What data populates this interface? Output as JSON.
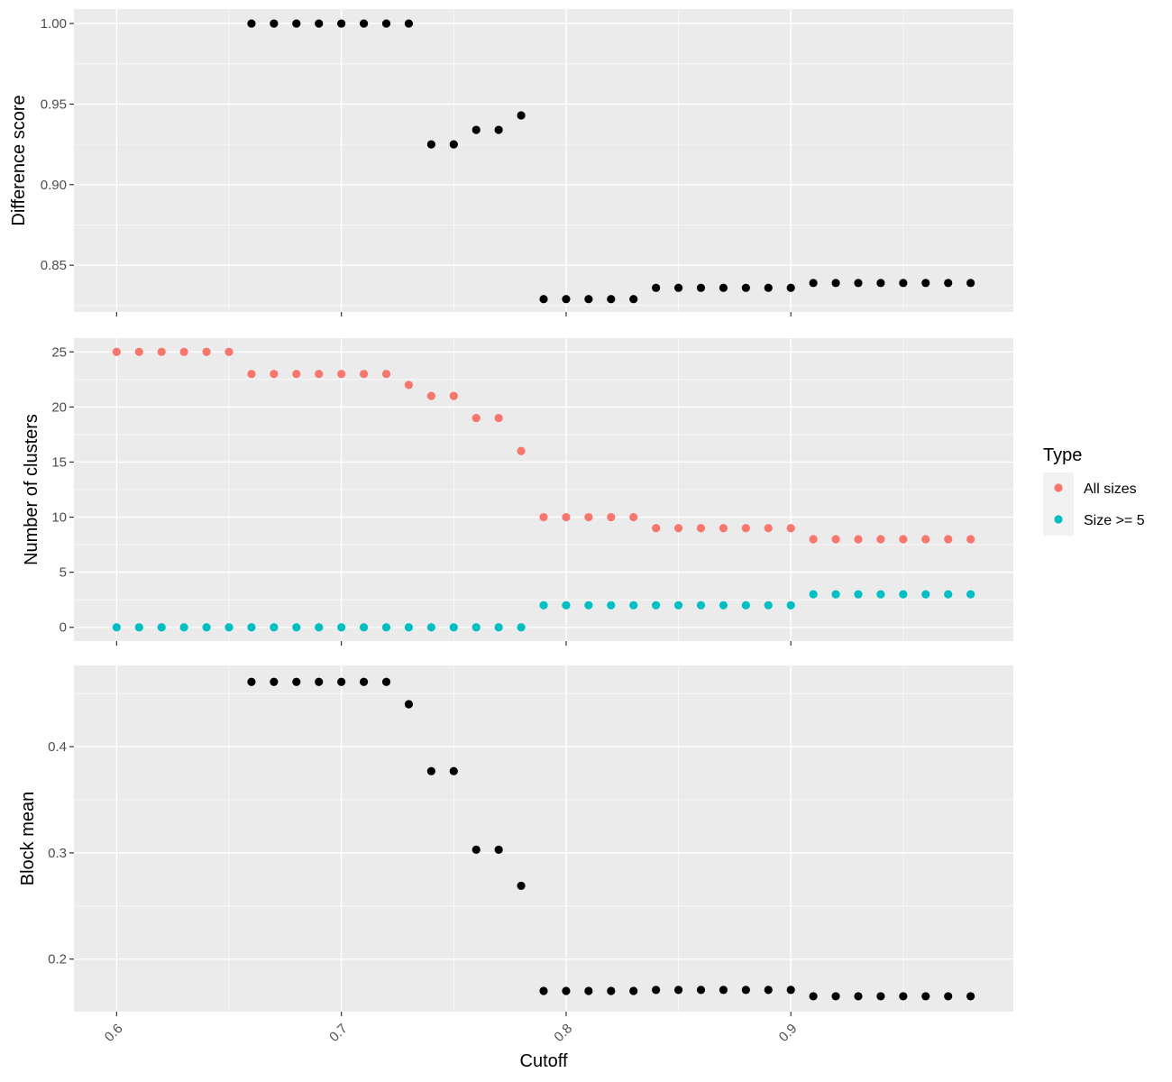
{
  "chart_data": [
    {
      "type": "scatter",
      "ylabel": "Difference score",
      "ylim": [
        0.821,
        1.009
      ],
      "yticks": [
        0.85,
        0.9,
        0.95,
        1.0
      ],
      "ytick_labels": [
        "0.85",
        "0.90",
        "0.95",
        "1.00"
      ],
      "series": [
        {
          "color": "#000000",
          "x": [
            0.66,
            0.67,
            0.68,
            0.69,
            0.7,
            0.71,
            0.72,
            0.73,
            0.74,
            0.75,
            0.76,
            0.77,
            0.78,
            0.79,
            0.8,
            0.81,
            0.82,
            0.83,
            0.84,
            0.85,
            0.86,
            0.87,
            0.88,
            0.89,
            0.9,
            0.91,
            0.92,
            0.93,
            0.94,
            0.95,
            0.96,
            0.97,
            0.98
          ],
          "y": [
            1.0,
            1.0,
            1.0,
            1.0,
            1.0,
            1.0,
            1.0,
            1.0,
            0.925,
            0.925,
            0.934,
            0.934,
            0.943,
            0.829,
            0.829,
            0.829,
            0.829,
            0.829,
            0.836,
            0.836,
            0.836,
            0.836,
            0.836,
            0.836,
            0.836,
            0.839,
            0.839,
            0.839,
            0.839,
            0.839,
            0.839,
            0.839,
            0.839
          ]
        }
      ],
      "grid": true
    },
    {
      "type": "scatter",
      "ylabel": "Number of clusters",
      "ylim": [
        -1.25,
        26.25
      ],
      "yticks": [
        0,
        5,
        10,
        15,
        20,
        25
      ],
      "ytick_labels": [
        "0",
        "5",
        "10",
        "15",
        "20",
        "25"
      ],
      "series": [
        {
          "name": "All sizes",
          "color": "#f8766d",
          "x": [
            0.6,
            0.61,
            0.62,
            0.63,
            0.64,
            0.65,
            0.66,
            0.67,
            0.68,
            0.69,
            0.7,
            0.71,
            0.72,
            0.73,
            0.74,
            0.75,
            0.76,
            0.77,
            0.78,
            0.79,
            0.8,
            0.81,
            0.82,
            0.83,
            0.84,
            0.85,
            0.86,
            0.87,
            0.88,
            0.89,
            0.9,
            0.91,
            0.92,
            0.93,
            0.94,
            0.95,
            0.96,
            0.97,
            0.98
          ],
          "y": [
            25,
            25,
            25,
            25,
            25,
            25,
            23,
            23,
            23,
            23,
            23,
            23,
            23,
            22,
            21,
            21,
            19,
            19,
            16,
            10,
            10,
            10,
            10,
            10,
            9,
            9,
            9,
            9,
            9,
            9,
            9,
            8,
            8,
            8,
            8,
            8,
            8,
            8,
            8
          ]
        },
        {
          "name": "Size >= 5",
          "color": "#00bfc4",
          "x": [
            0.6,
            0.61,
            0.62,
            0.63,
            0.64,
            0.65,
            0.66,
            0.67,
            0.68,
            0.69,
            0.7,
            0.71,
            0.72,
            0.73,
            0.74,
            0.75,
            0.76,
            0.77,
            0.78,
            0.79,
            0.8,
            0.81,
            0.82,
            0.83,
            0.84,
            0.85,
            0.86,
            0.87,
            0.88,
            0.89,
            0.9,
            0.91,
            0.92,
            0.93,
            0.94,
            0.95,
            0.96,
            0.97,
            0.98
          ],
          "y": [
            0,
            0,
            0,
            0,
            0,
            0,
            0,
            0,
            0,
            0,
            0,
            0,
            0,
            0,
            0,
            0,
            0,
            0,
            0,
            2,
            2,
            2,
            2,
            2,
            2,
            2,
            2,
            2,
            2,
            2,
            2,
            3,
            3,
            3,
            3,
            3,
            3,
            3,
            3
          ]
        }
      ],
      "grid": true,
      "legend": {
        "title": "Type",
        "position": "right",
        "entries": [
          "All sizes",
          "Size >= 5"
        ]
      }
    },
    {
      "type": "scatter",
      "ylabel": "Block mean",
      "xlabel": "Cutoff",
      "ylim": [
        0.1505,
        0.4765
      ],
      "yticks": [
        0.2,
        0.3,
        0.4
      ],
      "ytick_labels": [
        "0.2",
        "0.3",
        "0.4"
      ],
      "series": [
        {
          "color": "#000000",
          "x": [
            0.66,
            0.67,
            0.68,
            0.69,
            0.7,
            0.71,
            0.72,
            0.73,
            0.74,
            0.75,
            0.76,
            0.77,
            0.78,
            0.79,
            0.8,
            0.81,
            0.82,
            0.83,
            0.84,
            0.85,
            0.86,
            0.87,
            0.88,
            0.89,
            0.9,
            0.91,
            0.92,
            0.93,
            0.94,
            0.95,
            0.96,
            0.97,
            0.98
          ],
          "y": [
            0.461,
            0.461,
            0.461,
            0.461,
            0.461,
            0.461,
            0.461,
            0.44,
            0.377,
            0.377,
            0.303,
            0.303,
            0.269,
            0.17,
            0.17,
            0.17,
            0.17,
            0.17,
            0.171,
            0.171,
            0.171,
            0.171,
            0.171,
            0.171,
            0.171,
            0.165,
            0.165,
            0.165,
            0.165,
            0.165,
            0.165,
            0.165,
            0.165
          ]
        }
      ],
      "grid": true
    }
  ],
  "shared_x": {
    "xlabel": "Cutoff",
    "xlim": [
      0.581,
      0.999
    ],
    "xticks": [
      0.6,
      0.7,
      0.8,
      0.9
    ],
    "xtick_labels": [
      "0.6",
      "0.7",
      "0.8",
      "0.9"
    ]
  },
  "theme": {
    "panel_background": "#ebebeb",
    "grid_color": "#ffffff"
  }
}
